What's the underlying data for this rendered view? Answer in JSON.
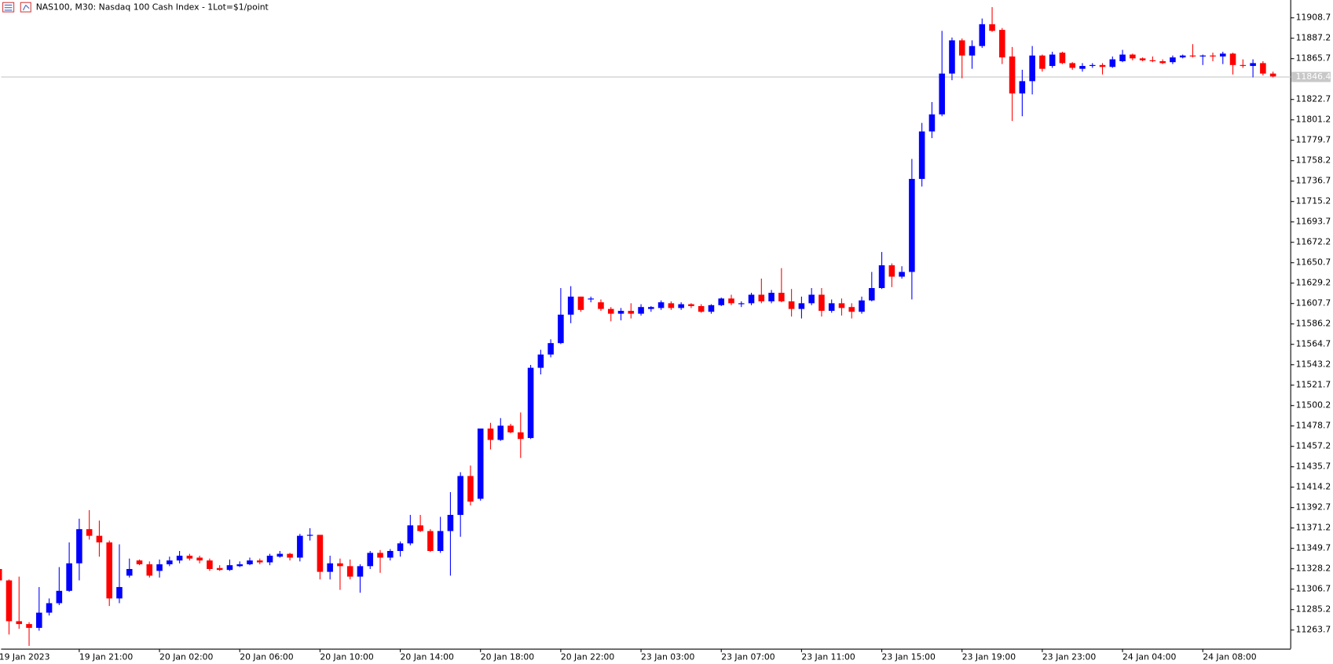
{
  "chart_data": {
    "type": "candlestick",
    "title": "NAS100, M30:  Nasdaq 100 Cash Index - 1Lot=$1/point",
    "up_color": "#0000ff",
    "down_color": "#ff0000",
    "categories": [
      "19 Jan 2023",
      null,
      null,
      null,
      null,
      null,
      null,
      null,
      "19 Jan 21:00",
      null,
      null,
      null,
      null,
      null,
      null,
      null,
      "20 Jan 02:00",
      null,
      null,
      null,
      null,
      null,
      null,
      null,
      "20 Jan 06:00",
      null,
      null,
      null,
      null,
      null,
      null,
      null,
      "20 Jan 10:00",
      null,
      null,
      null,
      null,
      null,
      null,
      null,
      "20 Jan 14:00",
      null,
      null,
      null,
      null,
      null,
      null,
      null,
      "20 Jan 18:00",
      null,
      null,
      null,
      null,
      null,
      null,
      null,
      "20 Jan 22:00",
      null,
      null,
      null,
      null,
      null,
      null,
      null,
      "23 Jan 03:00",
      null,
      null,
      null,
      null,
      null,
      null,
      null,
      "23 Jan 07:00",
      null,
      null,
      null,
      null,
      null,
      null,
      null,
      "23 Jan 11:00",
      null,
      null,
      null,
      null,
      null,
      null,
      null,
      "23 Jan 15:00",
      null,
      null,
      null,
      null,
      null,
      null,
      null,
      "23 Jan 19:00",
      null,
      null,
      null,
      null,
      null,
      null,
      null,
      "23 Jan 23:00",
      null,
      null,
      null,
      null,
      null,
      null,
      null,
      "24 Jan 04:00",
      null,
      null,
      null,
      null,
      null,
      null,
      null,
      "24 Jan 08:00",
      null,
      null,
      null,
      null,
      null,
      null,
      null
    ],
    "open": [
      11328,
      11316,
      11273,
      11270,
      11266,
      11282,
      11292,
      11305,
      11334,
      11370,
      11363,
      11356,
      11297,
      11321,
      11337,
      11333,
      11326,
      11333,
      11337,
      11342,
      11340,
      11337,
      11329,
      11327,
      11331,
      11333,
      11337,
      11335,
      11341,
      11344,
      11340,
      11363,
      11364,
      11325,
      11334,
      11331,
      11320,
      11331,
      11345,
      11340,
      11347,
      11355,
      11374,
      11368,
      11347,
      11368,
      11385,
      11426,
      11402,
      11476,
      11464,
      11479,
      11472,
      11466,
      11540,
      11554,
      11566,
      11596,
      11615,
      11612,
      11609,
      11602,
      11597,
      11600,
      11597,
      11602,
      11603,
      11608,
      11603,
      11607,
      11605,
      11599,
      11606,
      11613,
      11607,
      11608,
      11617,
      11610,
      11619,
      11610,
      11602,
      11608,
      11617,
      11600,
      11608,
      11604,
      11599,
      11611,
      11624,
      11648,
      11636,
      11641,
      11739,
      11789,
      11807,
      11850,
      11885,
      11869,
      11879,
      11902,
      11896,
      11868,
      11829,
      11842,
      11869,
      11858,
      11872,
      11861,
      11855,
      11858,
      11859,
      11857,
      11863,
      11870,
      11866,
      11864,
      11863,
      11862,
      11867,
      11869,
      11868,
      11869,
      11868,
      11871,
      11859,
      11858,
      11861,
      11850
    ],
    "high": [
      11330,
      11317,
      11320,
      11272,
      11309,
      11297,
      11330,
      11356,
      11381,
      11390,
      11379,
      11358,
      11354,
      11339,
      11338,
      11336,
      11338,
      11341,
      11347,
      11344,
      11342,
      11339,
      11332,
      11338,
      11336,
      11340,
      11339,
      11344,
      11347,
      11345,
      11365,
      11371,
      11364,
      11342,
      11339,
      11338,
      11333,
      11347,
      11348,
      11349,
      11357,
      11385,
      11385,
      11370,
      11383,
      11409,
      11430,
      11437,
      11476,
      11482,
      11487,
      11481,
      11493,
      11543,
      11559,
      11570,
      11624,
      11626,
      11615,
      11615,
      11612,
      11604,
      11603,
      11608,
      11607,
      11605,
      11611,
      11610,
      11609,
      11608,
      11607,
      11607,
      11614,
      11617,
      11610,
      11619,
      11634,
      11622,
      11645,
      11623,
      11615,
      11624,
      11624,
      11612,
      11613,
      11608,
      11615,
      11641,
      11662,
      11650,
      11647,
      11760,
      11798,
      11820,
      11895,
      11888,
      11887,
      11885,
      11908,
      11920,
      11898,
      11878,
      11854,
      11879,
      11870,
      11873,
      11873,
      11862,
      11861,
      11861,
      11861,
      11868,
      11875,
      11871,
      11867,
      11868,
      11865,
      11869,
      11870,
      11881,
      11870,
      11872,
      11873,
      11872,
      11865,
      11865,
      11863,
      11852
    ],
    "low": [
      11315,
      11259,
      11265,
      11247,
      11263,
      11279,
      11290,
      11304,
      11316,
      11359,
      11341,
      11289,
      11292,
      11319,
      11332,
      11319,
      11319,
      11331,
      11334,
      11337,
      11334,
      11326,
      11326,
      11326,
      11330,
      11332,
      11333,
      11332,
      11340,
      11337,
      11336,
      11358,
      11317,
      11317,
      11306,
      11317,
      11303,
      11328,
      11324,
      11337,
      11341,
      11353,
      11367,
      11346,
      11345,
      11321,
      11362,
      11395,
      11400,
      11454,
      11463,
      11471,
      11445,
      11465,
      11533,
      11551,
      11565,
      11587,
      11599,
      11609,
      11600,
      11589,
      11590,
      11592,
      11595,
      11599,
      11601,
      11601,
      11601,
      11603,
      11598,
      11597,
      11605,
      11606,
      11604,
      11606,
      11608,
      11608,
      11609,
      11594,
      11592,
      11606,
      11594,
      11598,
      11595,
      11592,
      11597,
      11610,
      11623,
      11625,
      11634,
      11612,
      11731,
      11782,
      11805,
      11843,
      11845,
      11855,
      11877,
      11894,
      11860,
      11800,
      11805,
      11828,
      11852,
      11856,
      11860,
      11854,
      11852,
      11856,
      11849,
      11856,
      11862,
      11864,
      11863,
      11862,
      11860,
      11860,
      11866,
      11867,
      11859,
      11863,
      11860,
      11849,
      11856,
      11846,
      11848,
      11846
    ],
    "close": [
      11316,
      11273,
      11270,
      11266,
      11282,
      11292,
      11305,
      11334,
      11370,
      11363,
      11356,
      11297,
      11309,
      11328,
      11333,
      11321,
      11333,
      11337,
      11342,
      11339,
      11337,
      11328,
      11327,
      11332,
      11333,
      11337,
      11335,
      11342,
      11344,
      11340,
      11363,
      11364,
      11325,
      11334,
      11331,
      11320,
      11331,
      11345,
      11340,
      11347,
      11355,
      11374,
      11368,
      11347,
      11368,
      11385,
      11426,
      11399,
      11476,
      11464,
      11479,
      11472,
      11465,
      11540,
      11554,
      11566,
      11596,
      11615,
      11601,
      11613,
      11602,
      11597,
      11600,
      11597,
      11604,
      11604,
      11609,
      11603,
      11607,
      11605,
      11599,
      11606,
      11613,
      11608,
      11608,
      11617,
      11610,
      11619,
      11610,
      11602,
      11608,
      11617,
      11600,
      11608,
      11603,
      11599,
      11611,
      11624,
      11648,
      11636,
      11641,
      11739,
      11789,
      11807,
      11850,
      11885,
      11869,
      11879,
      11902,
      11895,
      11867,
      11829,
      11842,
      11869,
      11855,
      11870,
      11861,
      11856,
      11858,
      11859,
      11857,
      11865,
      11870,
      11866,
      11864,
      11863,
      11861,
      11867,
      11869,
      11868,
      11869,
      11868,
      11871,
      11859,
      11858,
      11861,
      11850,
      11847
    ],
    "current_price": 11846.4,
    "ylim": [
      11244,
      11927.5
    ],
    "yticks": [
      11908.7,
      11887.2,
      11865.7,
      11822.7,
      11801.2,
      11779.7,
      11758.2,
      11736.7,
      11715.2,
      11693.7,
      11672.2,
      11650.7,
      11629.2,
      11607.7,
      11586.2,
      11564.7,
      11543.2,
      11521.7,
      11500.2,
      11478.7,
      11457.2,
      11435.7,
      11414.2,
      11392.7,
      11371.2,
      11349.7,
      11328.2,
      11306.7,
      11285.2,
      11263.7
    ]
  }
}
